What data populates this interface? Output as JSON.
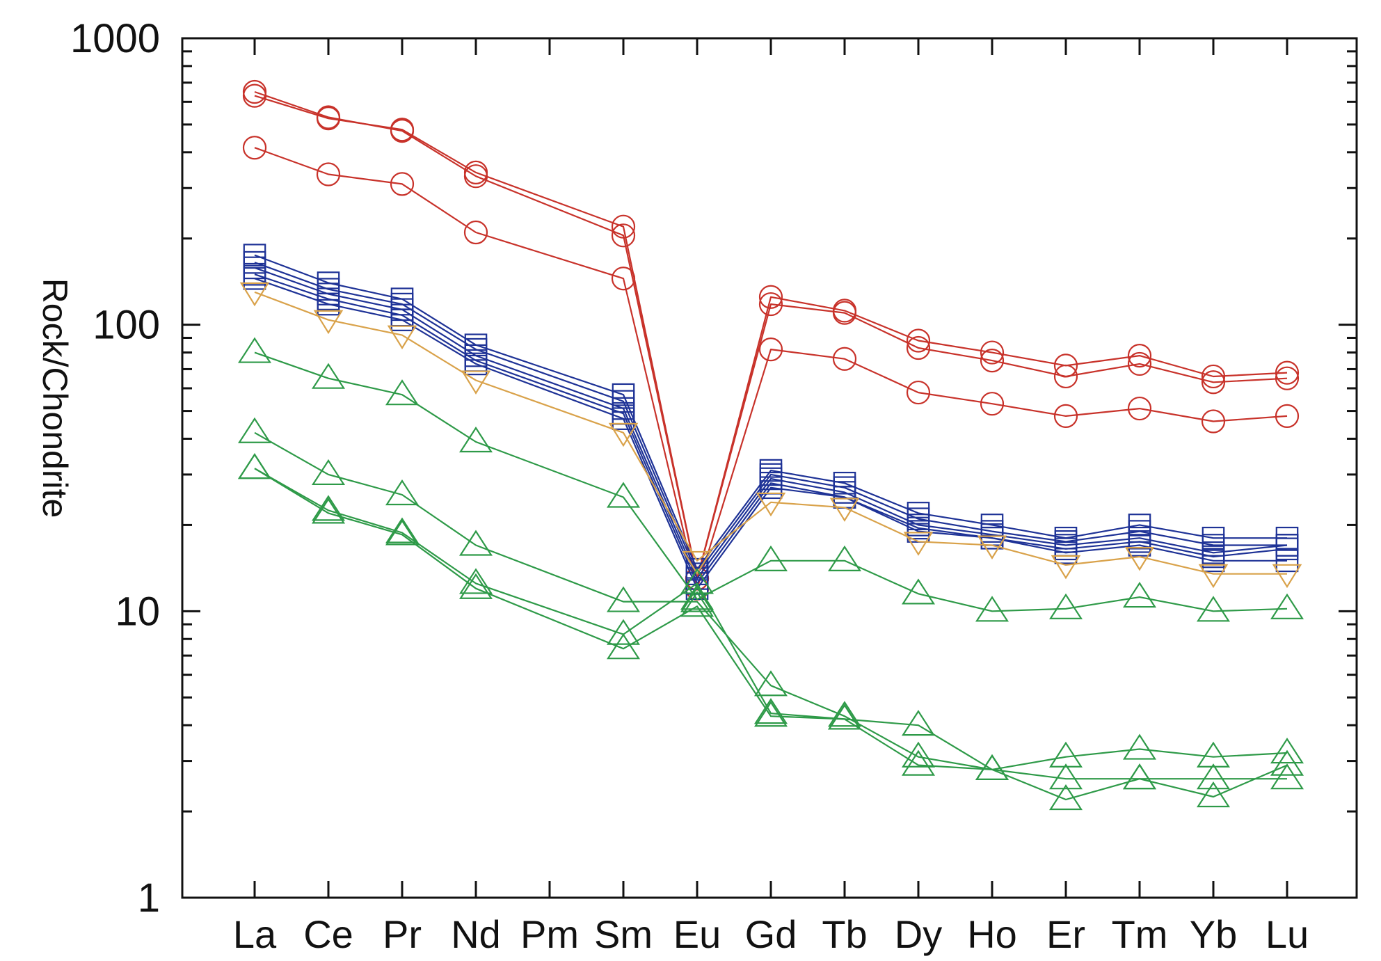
{
  "chart_data": {
    "type": "line",
    "title": "",
    "xlabel": "",
    "ylabel": "Rock/Chondrite",
    "yscale": "log",
    "ylim": [
      1,
      1000
    ],
    "yticks": [
      "1",
      "10",
      "100",
      "1000"
    ],
    "grid": false,
    "categories": [
      "La",
      "Ce",
      "Pr",
      "Nd",
      "Pm",
      "Sm",
      "Eu",
      "Gd",
      "Tb",
      "Dy",
      "Ho",
      "Er",
      "Tm",
      "Yb",
      "Lu"
    ],
    "colors": {
      "red": "#c8322a",
      "blue": "#1e3296",
      "orange": "#d9a24a",
      "green": "#2e9a48"
    },
    "series": [
      {
        "name": "circle-1",
        "marker": "circle",
        "color": "red",
        "values": [
          650,
          530,
          475,
          330,
          null,
          205,
          13,
          125,
          112,
          88,
          80,
          72,
          78,
          66,
          68
        ]
      },
      {
        "name": "circle-2",
        "marker": "circle",
        "color": "red",
        "values": [
          630,
          525,
          480,
          340,
          null,
          220,
          13,
          118,
          110,
          83,
          75,
          66,
          73,
          63,
          65
        ]
      },
      {
        "name": "circle-3",
        "marker": "circle",
        "color": "red",
        "values": [
          415,
          335,
          310,
          210,
          null,
          145,
          12,
          82,
          76,
          58,
          53,
          48,
          51,
          46,
          48
        ]
      },
      {
        "name": "square-1",
        "marker": "square",
        "color": "blue",
        "values": [
          175,
          140,
          123,
          85,
          null,
          57,
          14,
          31,
          28,
          22,
          20,
          18,
          20,
          18,
          18
        ]
      },
      {
        "name": "square-2",
        "marker": "square",
        "color": "blue",
        "values": [
          165,
          133,
          118,
          82,
          null,
          54,
          13.5,
          30,
          27,
          21,
          19,
          17.5,
          19,
          17,
          17
        ]
      },
      {
        "name": "square-3",
        "marker": "square",
        "color": "blue",
        "values": [
          158,
          128,
          113,
          78,
          null,
          51,
          13,
          29,
          26,
          20,
          18.5,
          17,
          18,
          16,
          17
        ]
      },
      {
        "name": "square-4",
        "marker": "square",
        "color": "blue",
        "values": [
          150,
          123,
          108,
          75,
          null,
          49,
          12.5,
          28,
          25,
          19.5,
          18,
          16.5,
          17.5,
          15.5,
          16.5
        ]
      },
      {
        "name": "square-5",
        "marker": "square",
        "color": "blue",
        "values": [
          145,
          118,
          104,
          73,
          null,
          47,
          12,
          27,
          25,
          19,
          18,
          16,
          17,
          15,
          15
        ]
      },
      {
        "name": "triangle-down-1",
        "marker": "triangle-down",
        "color": "orange",
        "values": [
          130,
          104,
          92,
          64,
          null,
          42,
          15,
          24,
          23,
          17.5,
          17,
          14.5,
          15.5,
          13.5,
          13.5
        ]
      },
      {
        "name": "triangle-1",
        "marker": "triangle",
        "color": "green",
        "values": [
          80,
          65,
          57,
          39,
          null,
          25,
          11,
          15,
          15,
          11.5,
          10,
          10.2,
          11.2,
          10,
          10.2
        ]
      },
      {
        "name": "triangle-2",
        "marker": "triangle",
        "color": "green",
        "values": [
          42,
          30,
          25.5,
          17,
          null,
          10.8,
          10.8,
          5.5,
          4.3,
          3.1,
          2.8,
          3.1,
          3.3,
          3.1,
          3.2
        ]
      },
      {
        "name": "triangle-3",
        "marker": "triangle",
        "color": "green",
        "values": [
          31.5,
          22.5,
          18.8,
          12.5,
          null,
          8.3,
          12.5,
          4.4,
          4.2,
          4.0,
          2.8,
          2.6,
          2.6,
          2.6,
          2.6
        ]
      },
      {
        "name": "triangle-4",
        "marker": "triangle",
        "color": "green",
        "values": [
          31.5,
          22,
          18.5,
          12,
          null,
          7.4,
          10.4,
          4.3,
          4.2,
          2.9,
          2.8,
          2.2,
          2.6,
          2.25,
          2.9
        ]
      }
    ]
  }
}
